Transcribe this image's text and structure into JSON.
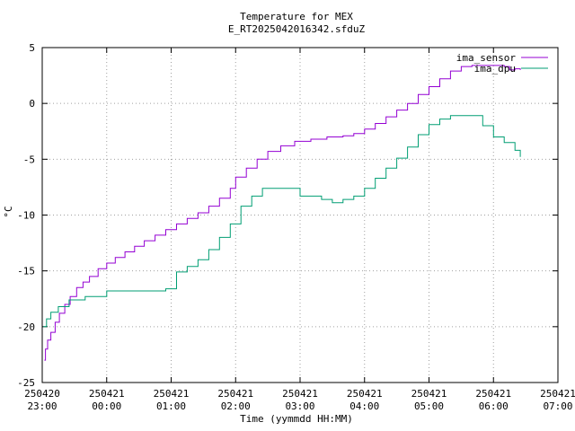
{
  "chart_data": {
    "type": "line",
    "title": "Temperature for MEX",
    "subtitle": "E_RT2025042016342.sfduZ",
    "xlabel": "Time (yymmdd HH:MM)",
    "ylabel": "°C",
    "x_ticks": [
      {
        "date": "250420",
        "time": "23:00"
      },
      {
        "date": "250421",
        "time": "00:00"
      },
      {
        "date": "250421",
        "time": "01:00"
      },
      {
        "date": "250421",
        "time": "02:00"
      },
      {
        "date": "250421",
        "time": "03:00"
      },
      {
        "date": "250421",
        "time": "04:00"
      },
      {
        "date": "250421",
        "time": "05:00"
      },
      {
        "date": "250421",
        "time": "06:00"
      },
      {
        "date": "250421",
        "time": "07:00"
      }
    ],
    "xlim": [
      "250420 23:00",
      "250421 07:00"
    ],
    "ylim": [
      -25,
      5
    ],
    "y_ticks": [
      -25,
      -20,
      -15,
      -10,
      -5,
      0,
      5
    ],
    "grid": true,
    "legend_position": "top-right",
    "series": [
      {
        "name": "ima_sensor",
        "color": "#9400d3",
        "points": [
          [
            "250420 23:02",
            -23.0
          ],
          [
            "250420 23:03",
            -22.0
          ],
          [
            "250420 23:05",
            -21.2
          ],
          [
            "250420 23:08",
            -20.5
          ],
          [
            "250420 23:12",
            -19.6
          ],
          [
            "250420 23:16",
            -18.8
          ],
          [
            "250420 23:21",
            -18.0
          ],
          [
            "250420 23:26",
            -17.3
          ],
          [
            "250420 23:32",
            -16.5
          ],
          [
            "250420 23:38",
            -16.0
          ],
          [
            "250420 23:44",
            -15.5
          ],
          [
            "250420 23:52",
            -14.8
          ],
          [
            "250421 00:00",
            -14.3
          ],
          [
            "250421 00:08",
            -13.8
          ],
          [
            "250421 00:17",
            -13.3
          ],
          [
            "250421 00:26",
            -12.8
          ],
          [
            "250421 00:35",
            -12.3
          ],
          [
            "250421 00:45",
            -11.8
          ],
          [
            "250421 00:55",
            -11.3
          ],
          [
            "250421 01:05",
            -10.8
          ],
          [
            "250421 01:15",
            -10.3
          ],
          [
            "250421 01:25",
            -9.8
          ],
          [
            "250421 01:35",
            -9.2
          ],
          [
            "250421 01:45",
            -8.5
          ],
          [
            "250421 01:55",
            -7.6
          ],
          [
            "250421 02:00",
            -6.6
          ],
          [
            "250421 02:10",
            -5.8
          ],
          [
            "250421 02:20",
            -5.0
          ],
          [
            "250421 02:30",
            -4.3
          ],
          [
            "250421 02:42",
            -3.8
          ],
          [
            "250421 02:55",
            -3.4
          ],
          [
            "250421 03:10",
            -3.2
          ],
          [
            "250421 03:25",
            -3.0
          ],
          [
            "250421 03:40",
            -2.9
          ],
          [
            "250421 03:50",
            -2.7
          ],
          [
            "250421 04:00",
            -2.3
          ],
          [
            "250421 04:10",
            -1.8
          ],
          [
            "250421 04:20",
            -1.2
          ],
          [
            "250421 04:30",
            -0.6
          ],
          [
            "250421 04:40",
            0.0
          ],
          [
            "250421 04:50",
            0.8
          ],
          [
            "250421 05:00",
            1.5
          ],
          [
            "250421 05:10",
            2.2
          ],
          [
            "250421 05:20",
            2.9
          ],
          [
            "250421 05:30",
            3.3
          ],
          [
            "250421 05:40",
            3.4
          ],
          [
            "250421 05:50",
            3.4
          ],
          [
            "250421 06:00",
            3.4
          ],
          [
            "250421 06:10",
            3.3
          ],
          [
            "250421 06:15",
            3.0
          ],
          [
            "250421 06:20",
            3.1
          ],
          [
            "250421 06:25",
            3.0
          ]
        ]
      },
      {
        "name": "ima_dpu",
        "color": "#009e73",
        "points": [
          [
            "250420 23:01",
            -20.0
          ],
          [
            "250420 23:04",
            -19.3
          ],
          [
            "250420 23:08",
            -18.7
          ],
          [
            "250420 23:15",
            -18.2
          ],
          [
            "250420 23:25",
            -17.6
          ],
          [
            "250420 23:40",
            -17.3
          ],
          [
            "250421 00:00",
            -16.8
          ],
          [
            "250421 00:30",
            -16.8
          ],
          [
            "250421 00:55",
            -16.6
          ],
          [
            "250421 01:05",
            -15.1
          ],
          [
            "250421 01:15",
            -14.6
          ],
          [
            "250421 01:25",
            -14.0
          ],
          [
            "250421 01:35",
            -13.1
          ],
          [
            "250421 01:45",
            -12.0
          ],
          [
            "250421 01:55",
            -10.8
          ],
          [
            "250421 02:05",
            -9.2
          ],
          [
            "250421 02:15",
            -8.3
          ],
          [
            "250421 02:25",
            -7.6
          ],
          [
            "250421 02:45",
            -7.6
          ],
          [
            "250421 03:00",
            -8.3
          ],
          [
            "250421 03:20",
            -8.6
          ],
          [
            "250421 03:30",
            -8.9
          ],
          [
            "250421 03:40",
            -8.6
          ],
          [
            "250421 03:50",
            -8.3
          ],
          [
            "250421 04:00",
            -7.6
          ],
          [
            "250421 04:10",
            -6.7
          ],
          [
            "250421 04:20",
            -5.8
          ],
          [
            "250421 04:30",
            -4.9
          ],
          [
            "250421 04:40",
            -3.9
          ],
          [
            "250421 04:50",
            -2.8
          ],
          [
            "250421 05:00",
            -1.9
          ],
          [
            "250421 05:10",
            -1.4
          ],
          [
            "250421 05:20",
            -1.1
          ],
          [
            "250421 05:40",
            -1.1
          ],
          [
            "250421 05:50",
            -2.0
          ],
          [
            "250421 06:00",
            -3.0
          ],
          [
            "250421 06:10",
            -3.5
          ],
          [
            "250421 06:20",
            -4.2
          ],
          [
            "250421 06:25",
            -4.8
          ]
        ]
      }
    ]
  }
}
